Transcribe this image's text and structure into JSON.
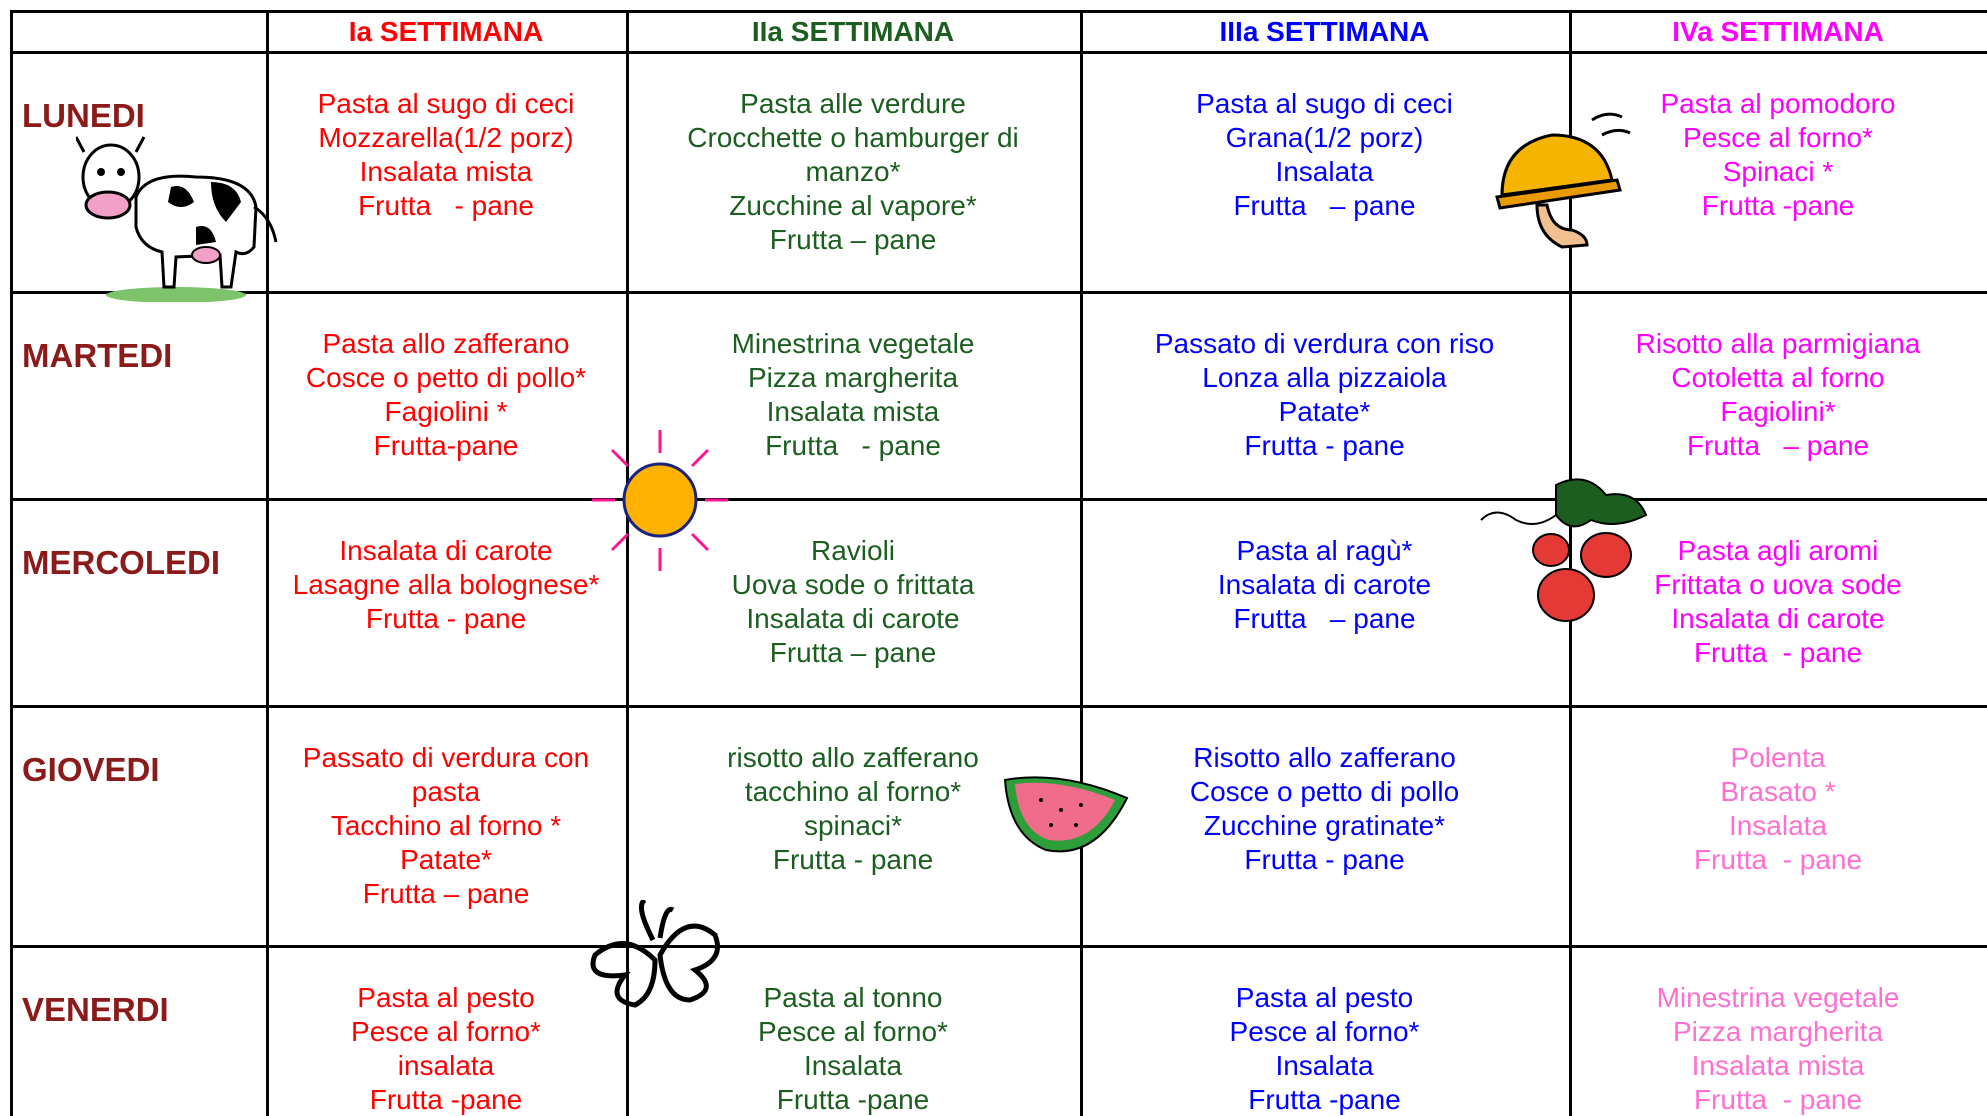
{
  "header": {
    "weeks": [
      "Ia SETTIMANA",
      "IIa  SETTIMANA",
      "IIIa  SETTIMANA",
      "IVa  SETTIMANA"
    ]
  },
  "table": {
    "rows": [
      {
        "day": "LUNEDI",
        "cells": [
          [
            "Pasta al sugo di ceci",
            "Mozzarella(1/2 porz)",
            "Insalata mista",
            "Frutta   - pane"
          ],
          [
            "Pasta alle verdure",
            "Crocchette o hamburger di manzo*",
            "Zucchine al vapore*",
            "Frutta – pane"
          ],
          [
            "Pasta al sugo di ceci",
            "Grana(1/2 porz)",
            "Insalata",
            "Frutta   – pane"
          ],
          [
            "Pasta al pomodoro",
            "Pesce al forno*",
            "Spinaci *",
            "Frutta -pane"
          ]
        ]
      },
      {
        "day": "MARTEDI",
        "cells": [
          [
            "Pasta allo zafferano",
            "Cosce o petto di pollo*",
            "Fagiolini *",
            "Frutta-pane"
          ],
          [
            "Minestrina vegetale",
            "Pizza margherita",
            "Insalata mista",
            "Frutta   - pane"
          ],
          [
            "Passato di verdura con riso",
            "Lonza alla pizzaiola",
            "Patate*",
            "Frutta - pane"
          ],
          [
            "Risotto alla parmigiana",
            "Cotoletta al forno",
            "Fagiolini*",
            "Frutta   – pane"
          ]
        ]
      },
      {
        "day": "MERCOLEDI",
        "cells": [
          [
            "Insalata di carote",
            "Lasagne alla bolognese*",
            "Frutta - pane"
          ],
          [
            "Ravioli",
            "Uova sode o frittata",
            "Insalata di carote",
            "Frutta – pane"
          ],
          [
            "Pasta al ragù*",
            "Insalata di carote",
            "Frutta   – pane"
          ],
          [
            "Pasta agli aromi",
            "Frittata o uova sode",
            "Insalata di carote",
            "Frutta  - pane"
          ]
        ]
      },
      {
        "day": "GIOVEDI",
        "cells": [
          [
            "Passato di verdura con pasta",
            "Tacchino al forno *",
            "Patate*",
            "Frutta – pane"
          ],
          [
            "risotto allo zafferano",
            "tacchino al forno*",
            "spinaci*",
            "Frutta - pane"
          ],
          [
            "Risotto allo zafferano",
            "Cosce o petto di pollo",
            "Zucchine gratinate*",
            "Frutta - pane"
          ],
          [
            "Polenta",
            "Brasato *",
            "Insalata",
            "Frutta  - pane"
          ]
        ]
      },
      {
        "day": "VENERDI",
        "cells": [
          [
            "Pasta al pesto",
            "Pesce al forno*",
            "insalata",
            "Frutta -pane"
          ],
          [
            "Pasta al tonno",
            "Pesce al forno*",
            "Insalata",
            "Frutta -pane"
          ],
          [
            "Pasta al pesto",
            "Pesce al forno*",
            "Insalata",
            "Frutta -pane"
          ],
          [
            "Minestrina vegetale",
            "Pizza margherita",
            "Insalata mista",
            "Frutta  - pane"
          ]
        ]
      }
    ]
  }
}
